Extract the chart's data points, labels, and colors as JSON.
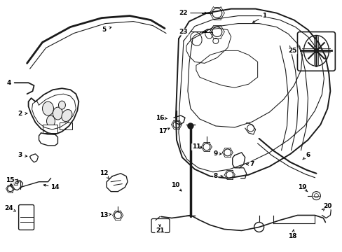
{
  "background_color": "#ffffff",
  "line_color": "#1a1a1a",
  "text_color": "#000000",
  "fig_width": 4.89,
  "fig_height": 3.6,
  "dpi": 100
}
